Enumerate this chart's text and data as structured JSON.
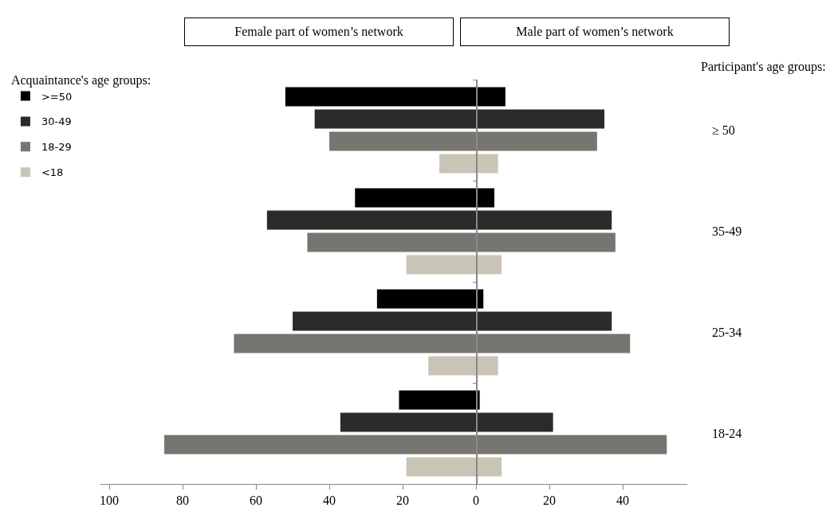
{
  "chart_data": {
    "type": "bar",
    "orientation": "horizontal",
    "annotations": [
      "Female part of women’s network",
      "Male part of women’s network"
    ],
    "legend_title": "Acquaintance's age groups:",
    "ylabel": "Participant's age groups:",
    "categories": [
      "≥ 50",
      "35-49",
      "25-34",
      "18-24"
    ],
    "series": [
      {
        "name": ">=50",
        "color": "#000000",
        "base": [
          -52,
          -33,
          -27,
          -21
        ],
        "values": [
          60,
          38,
          29,
          22
        ]
      },
      {
        "name": "30-49",
        "color": "#2b2b2b",
        "base": [
          -44,
          -57,
          -50,
          -37
        ],
        "values": [
          79,
          94,
          87,
          58
        ]
      },
      {
        "name": "18-29",
        "color": "#777570",
        "base": [
          -40,
          -46,
          -66,
          -85
        ],
        "values": [
          73,
          84,
          108,
          137
        ]
      },
      {
        "name": "<18",
        "color": "#c9c5b6",
        "base": [
          -10,
          -19,
          -13,
          -19
        ],
        "values": [
          16,
          26,
          19,
          26
        ]
      }
    ],
    "xlim": [
      -102.4,
      57.6
    ],
    "xticks": [
      {
        "value": -100,
        "label": "100"
      },
      {
        "value": -80,
        "label": "80"
      },
      {
        "value": -60,
        "label": "60"
      },
      {
        "value": -40,
        "label": "40"
      },
      {
        "value": -20,
        "label": "20"
      },
      0,
      20,
      40
    ],
    "legend": "top left"
  }
}
